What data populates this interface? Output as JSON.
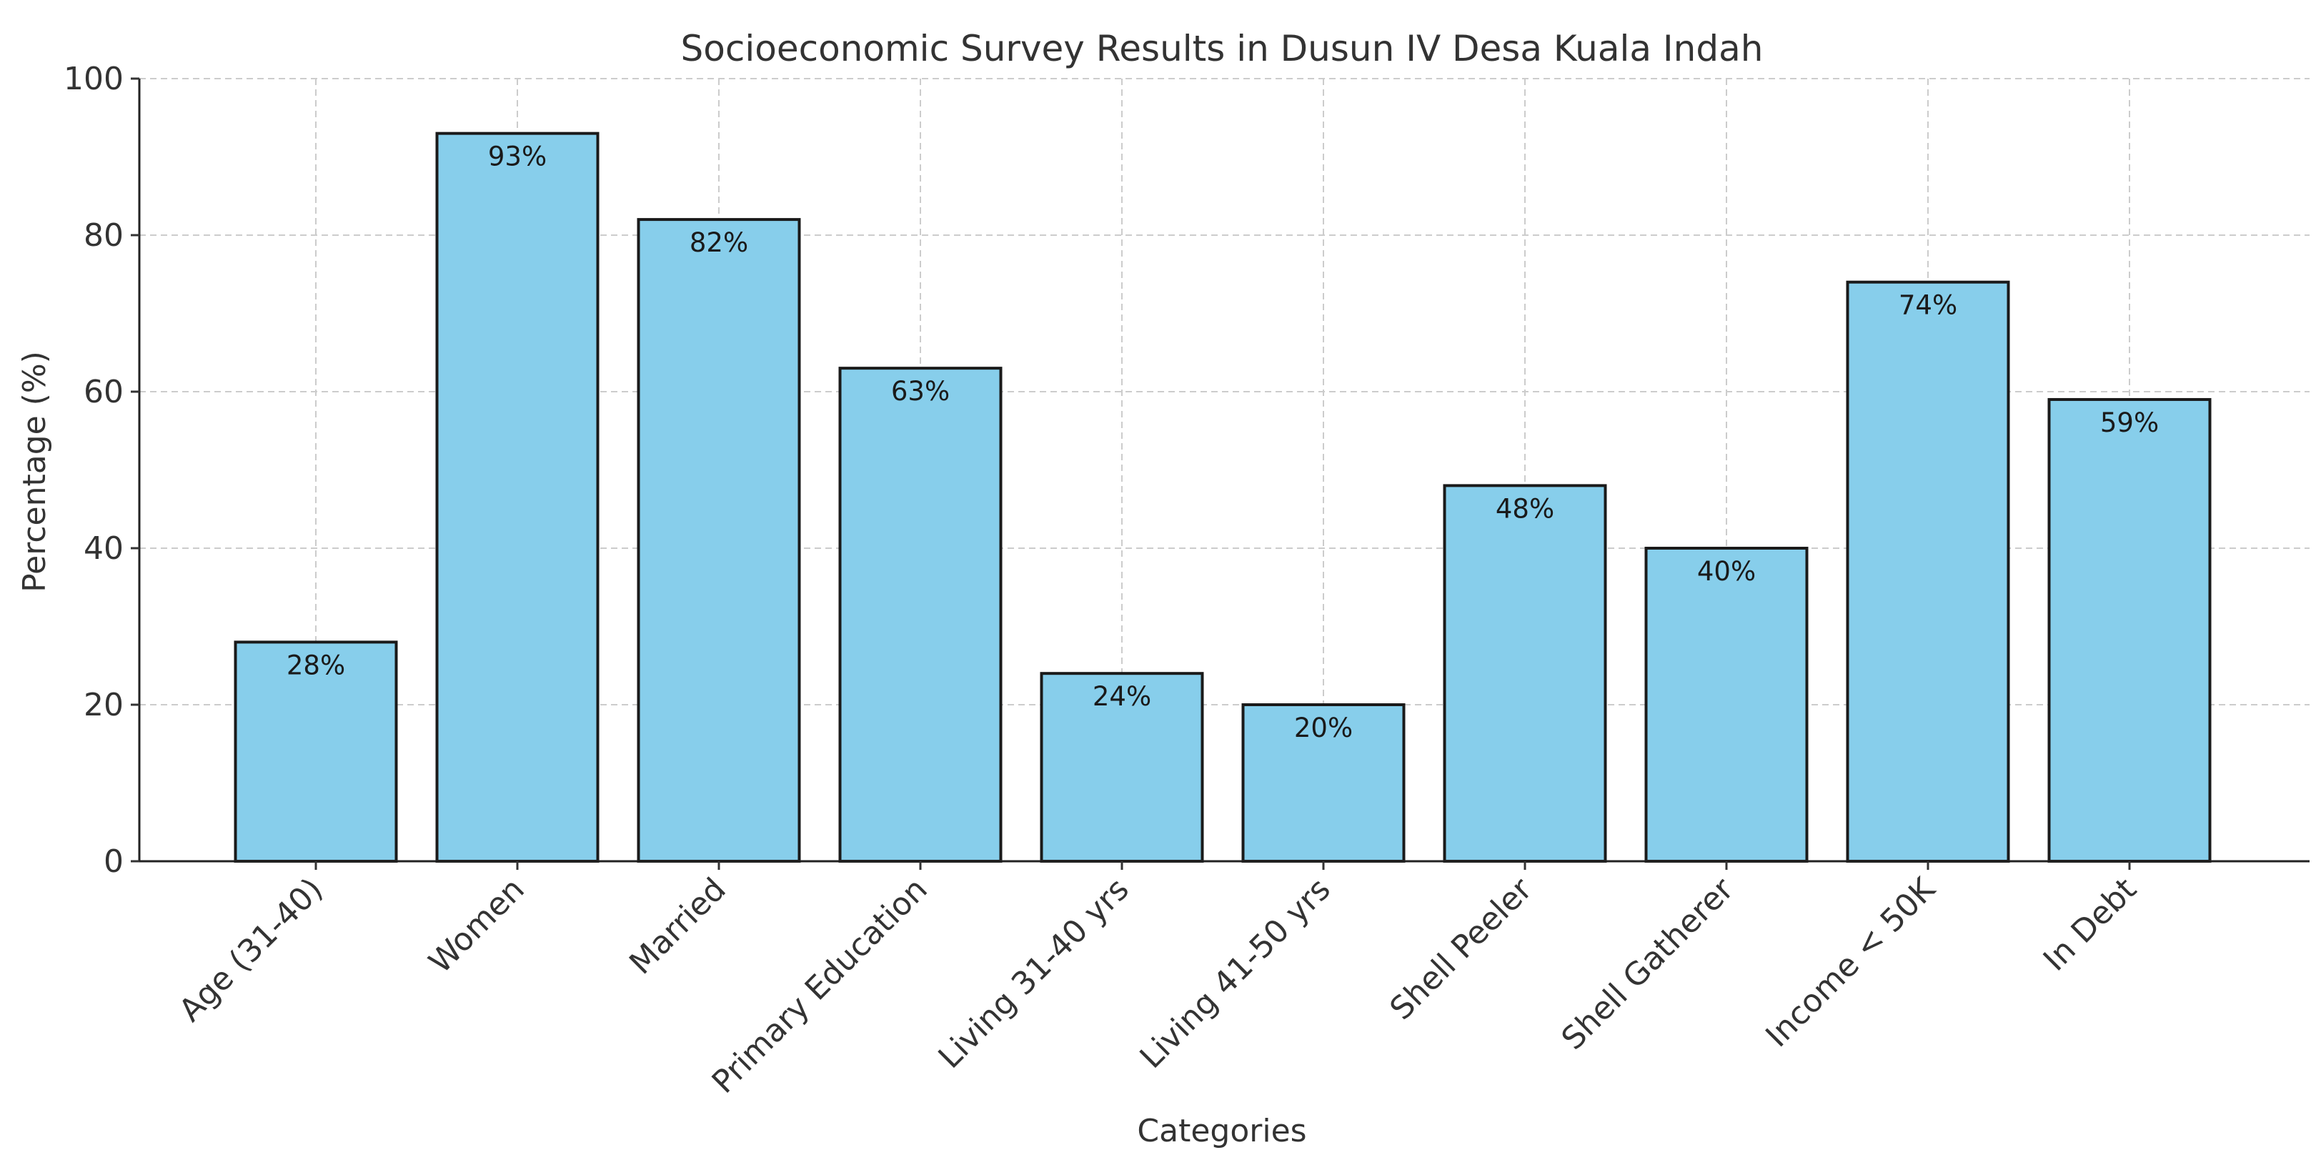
{
  "chart_data": {
    "type": "bar",
    "title": "Socioeconomic Survey Results in Dusun IV Desa Kuala Indah",
    "xlabel": "Categories",
    "ylabel": "Percentage (%)",
    "ylim": [
      0,
      100
    ],
    "yticks": [
      0,
      20,
      40,
      60,
      80,
      100
    ],
    "grid": true,
    "categories": [
      "Age (31-40)",
      "Women",
      "Married",
      "Primary Education",
      "Living 31-40 yrs",
      "Living 41-50 yrs",
      "Shell Peeler",
      "Shell Gatherer",
      "Income < 50K",
      "In Debt"
    ],
    "values": [
      28,
      93,
      82,
      63,
      24,
      20,
      48,
      40,
      74,
      59
    ],
    "data_labels": [
      "28%",
      "93%",
      "82%",
      "63%",
      "24%",
      "20%",
      "48%",
      "40%",
      "74%",
      "59%"
    ],
    "colors": {
      "bar": "#87CEEB",
      "bar_edge": "#1a1a1a",
      "grid": "#cccccc",
      "text": "#333333"
    }
  }
}
